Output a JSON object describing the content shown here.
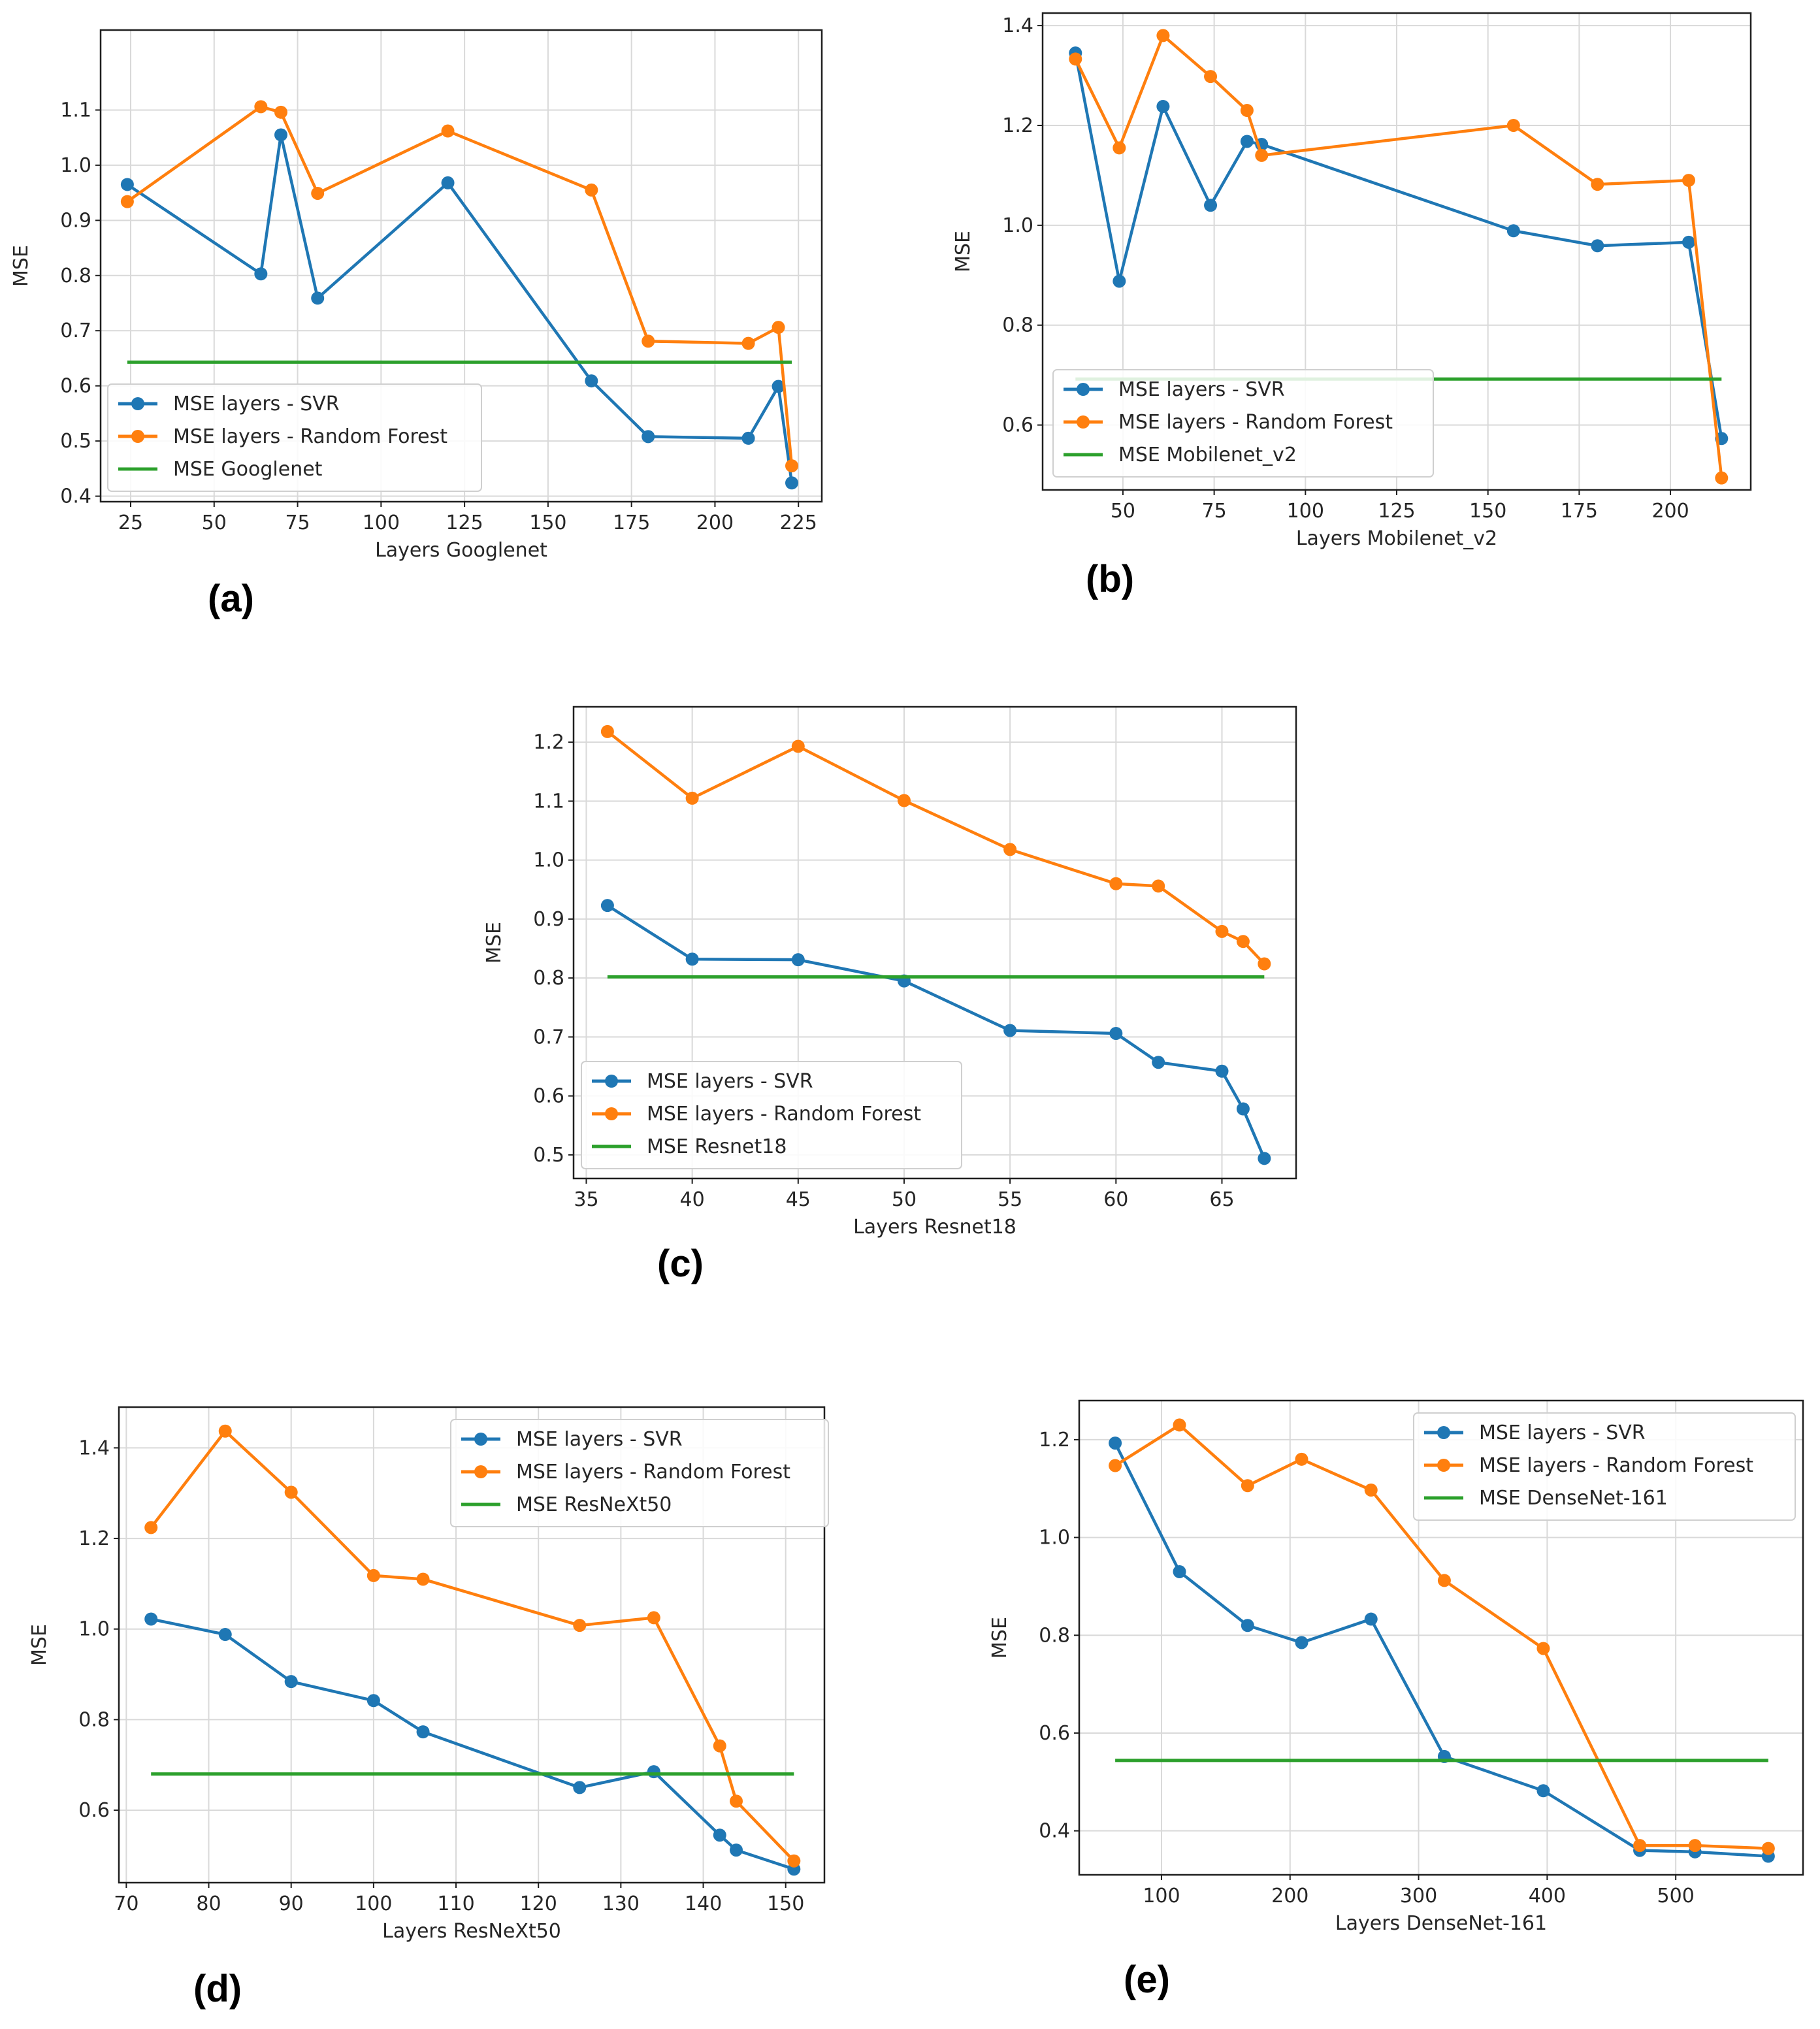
{
  "colors": {
    "svr": "#1f77b4",
    "rf": "#ff7f0e",
    "baseline": "#2ca02c"
  },
  "chart_data": [
    {
      "id": "a",
      "panel_label": "(a)",
      "type": "line",
      "xlabel": "Layers Googlenet",
      "ylabel": "MSE",
      "xlim": [
        16,
        232
      ],
      "ylim": [
        0.39,
        1.245
      ],
      "xticks": [
        25,
        50,
        75,
        100,
        125,
        150,
        175,
        200,
        225
      ],
      "yticks": [
        0.4,
        0.5,
        0.6,
        0.7,
        0.8,
        0.9,
        1.0,
        1.1
      ],
      "legend_position": "lower-left",
      "series": [
        {
          "name": "MSE layers - SVR",
          "x": [
            24,
            64,
            70,
            81,
            120,
            163,
            180,
            210,
            219,
            223
          ],
          "y": [
            0.965,
            0.803,
            1.055,
            0.759,
            0.968,
            0.609,
            0.508,
            0.505,
            0.599,
            0.424
          ]
        },
        {
          "name": "MSE layers - Random Forest",
          "x": [
            24,
            64,
            70,
            81,
            120,
            163,
            180,
            210,
            219,
            223
          ],
          "y": [
            0.934,
            1.106,
            1.096,
            0.949,
            1.062,
            0.955,
            0.681,
            0.677,
            0.706,
            0.455
          ]
        },
        {
          "name": "MSE Googlenet",
          "x": [
            24,
            223
          ],
          "y": [
            0.643,
            0.643
          ]
        }
      ]
    },
    {
      "id": "b",
      "panel_label": "(b)",
      "type": "line",
      "xlabel": "Layers Mobilenet_v2",
      "ylabel": "MSE",
      "xlim": [
        28,
        222
      ],
      "ylim": [
        0.47,
        1.425
      ],
      "xticks": [
        50,
        75,
        100,
        125,
        150,
        175,
        200
      ],
      "yticks": [
        0.6,
        0.8,
        1.0,
        1.2,
        1.4
      ],
      "legend_position": "lower-left",
      "series": [
        {
          "name": "MSE layers - SVR",
          "x": [
            37,
            49,
            61,
            74,
            84,
            88,
            157,
            180,
            205,
            214
          ],
          "y": [
            1.345,
            0.888,
            1.238,
            1.04,
            1.168,
            1.162,
            0.989,
            0.959,
            0.966,
            0.573
          ]
        },
        {
          "name": "MSE layers - Random Forest",
          "x": [
            37,
            49,
            61,
            74,
            84,
            88,
            157,
            180,
            205,
            214
          ],
          "y": [
            1.333,
            1.155,
            1.38,
            1.298,
            1.23,
            1.14,
            1.2,
            1.082,
            1.09,
            0.494
          ]
        },
        {
          "name": "MSE Mobilenet_v2",
          "x": [
            37,
            214
          ],
          "y": [
            0.692,
            0.692
          ]
        }
      ]
    },
    {
      "id": "c",
      "panel_label": "(c)",
      "type": "line",
      "xlabel": "Layers Resnet18",
      "ylabel": "MSE",
      "xlim": [
        34.4,
        68.5
      ],
      "ylim": [
        0.46,
        1.26
      ],
      "xticks": [
        35,
        40,
        45,
        50,
        55,
        60,
        65
      ],
      "yticks": [
        0.5,
        0.6,
        0.7,
        0.8,
        0.9,
        1.0,
        1.1,
        1.2
      ],
      "legend_position": "lower-left",
      "series": [
        {
          "name": "MSE layers - SVR",
          "x": [
            36,
            40,
            45,
            50,
            55,
            60,
            62,
            65,
            66,
            67
          ],
          "y": [
            0.923,
            0.832,
            0.831,
            0.795,
            0.711,
            0.706,
            0.657,
            0.642,
            0.578,
            0.494
          ]
        },
        {
          "name": "MSE layers - Random Forest",
          "x": [
            36,
            40,
            45,
            50,
            55,
            60,
            62,
            65,
            66,
            67
          ],
          "y": [
            1.218,
            1.105,
            1.193,
            1.101,
            1.018,
            0.96,
            0.956,
            0.879,
            0.862,
            0.824
          ]
        },
        {
          "name": "MSE Resnet18",
          "x": [
            36,
            67
          ],
          "y": [
            0.802,
            0.802
          ]
        }
      ]
    },
    {
      "id": "d",
      "panel_label": "(d)",
      "type": "line",
      "xlabel": "Layers ResNeXt50",
      "ylabel": "MSE",
      "xlim": [
        69.1,
        154.7
      ],
      "ylim": [
        0.44,
        1.49
      ],
      "xticks": [
        70,
        80,
        90,
        100,
        110,
        120,
        130,
        140,
        150
      ],
      "yticks": [
        0.6,
        0.8,
        1.0,
        1.2,
        1.4
      ],
      "legend_position": "top-right",
      "series": [
        {
          "name": "MSE layers - SVR",
          "x": [
            73,
            82,
            90,
            100,
            106,
            125,
            134,
            142,
            144,
            151
          ],
          "y": [
            1.022,
            0.988,
            0.884,
            0.842,
            0.773,
            0.65,
            0.685,
            0.545,
            0.512,
            0.47
          ]
        },
        {
          "name": "MSE layers - Random Forest",
          "x": [
            73,
            82,
            90,
            100,
            106,
            125,
            134,
            142,
            144,
            151
          ],
          "y": [
            1.224,
            1.437,
            1.302,
            1.118,
            1.11,
            1.008,
            1.025,
            0.742,
            0.62,
            0.488
          ]
        },
        {
          "name": "MSE ResNeXt50",
          "x": [
            73,
            151
          ],
          "y": [
            0.68,
            0.68
          ]
        }
      ]
    },
    {
      "id": "e",
      "panel_label": "(e)",
      "type": "line",
      "xlabel": "Layers DenseNet-161",
      "ylabel": "MSE",
      "xlim": [
        36,
        599
      ],
      "ylim": [
        0.31,
        1.28
      ],
      "xticks": [
        100,
        200,
        300,
        400,
        500
      ],
      "yticks": [
        0.4,
        0.6,
        0.8,
        1.0,
        1.2
      ],
      "legend_position": "top-right",
      "series": [
        {
          "name": "MSE layers - SVR",
          "x": [
            64,
            114,
            167,
            209,
            263,
            320,
            397,
            472,
            515,
            572
          ],
          "y": [
            1.193,
            0.93,
            0.82,
            0.785,
            0.833,
            0.552,
            0.482,
            0.36,
            0.357,
            0.348
          ]
        },
        {
          "name": "MSE layers - Random Forest",
          "x": [
            64,
            114,
            167,
            209,
            263,
            320,
            397,
            472,
            515,
            572
          ],
          "y": [
            1.147,
            1.23,
            1.106,
            1.16,
            1.097,
            0.912,
            0.773,
            0.37,
            0.37,
            0.364
          ]
        },
        {
          "name": "MSE DenseNet-161",
          "x": [
            64,
            572
          ],
          "y": [
            0.544,
            0.544
          ]
        }
      ]
    }
  ]
}
